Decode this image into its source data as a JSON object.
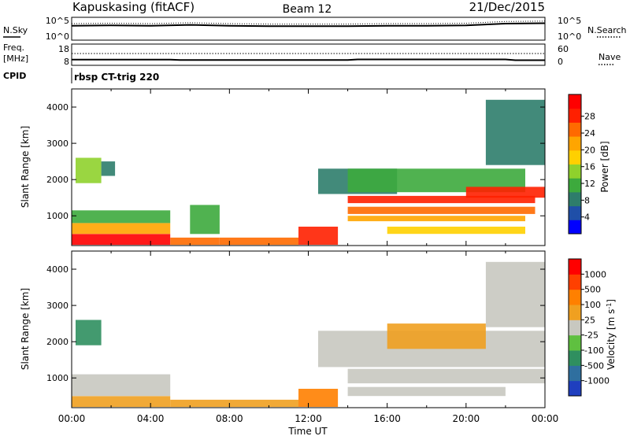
{
  "header": {
    "station": "Kapuskasing (fitACF)",
    "beam": "Beam 12",
    "date": "21/Dec/2015"
  },
  "noise_panel": {
    "left_label": "N.Sky",
    "left_ticks": [
      "10^5",
      "10^0"
    ],
    "right_ticks": [
      "10^5",
      "10^0"
    ],
    "right_label": "N.Search"
  },
  "freq_panel": {
    "left_label_top": "Freq.",
    "left_label_unit": "[MHz]",
    "left_ticks": [
      "18",
      "8"
    ],
    "right_ticks": [
      "60",
      "0"
    ],
    "right_label": "Nave"
  },
  "cpid": {
    "label": "CPID",
    "value": "rbsp CT-trig 220"
  },
  "axes": {
    "ylabel": "Slant Range [km]",
    "xlabel": "Time UT",
    "xticks": [
      "00:00",
      "04:00",
      "08:00",
      "12:00",
      "16:00",
      "20:00",
      "00:00"
    ],
    "yticks": [
      "1000",
      "2000",
      "3000",
      "4000"
    ]
  },
  "colorbars": {
    "power": {
      "label": "Power [dB]",
      "ticks": [
        "4",
        "8",
        "12",
        "16",
        "20",
        "24",
        "28"
      ],
      "colors": [
        "#0000ff",
        "#1f4fa8",
        "#2e7d6b",
        "#3daa3d",
        "#8fd12c",
        "#ffd000",
        "#ffa500",
        "#ff6a00",
        "#ff2000",
        "#ff0000"
      ]
    },
    "velocity": {
      "label": "Velocity [m s",
      "label_exp": "-1",
      "label_close": "]",
      "ticks": [
        "1000",
        "500",
        "100",
        "25",
        "-25",
        "-100",
        "-500",
        "-1000"
      ],
      "colors": [
        "#1f3fbf",
        "#2f6f9f",
        "#2f8f5f",
        "#5fc040",
        "#c8c8c0",
        "#f0a020",
        "#ff8000",
        "#ff4000",
        "#ff0000"
      ]
    }
  },
  "chart_data": [
    {
      "type": "line",
      "title": "Kapuskasing (fitACF) Beam 12 21/Dec/2015",
      "series": [
        {
          "name": "N.Sky",
          "x": [
            0,
            2,
            4,
            6,
            8,
            10,
            12,
            14,
            16,
            18,
            20,
            22,
            24
          ],
          "y": [
            3.2,
            3.3,
            3.2,
            3.4,
            3.2,
            3.1,
            3.1,
            3.1,
            3.2,
            3.2,
            3.3,
            3.7,
            3.8
          ]
        }
      ],
      "xlim": [
        0,
        24
      ],
      "ylim": [
        0,
        5
      ]
    },
    {
      "type": "line",
      "series": [
        {
          "name": "Freq.",
          "x": [
            0,
            5,
            5.5,
            14,
            14.5,
            22,
            22.5,
            24
          ],
          "y": [
            10.5,
            10.5,
            10.3,
            10.3,
            10.6,
            10.6,
            10.2,
            10.2
          ]
        }
      ],
      "xlim": [
        0,
        24
      ],
      "ylim": [
        8,
        18
      ]
    },
    {
      "type": "heatmap",
      "xlabel": "Time UT",
      "ylabel": "Slant Range [km]",
      "colorbar": "Power [dB]",
      "xlim": [
        0,
        24
      ],
      "ylim": [
        180,
        4500
      ],
      "regions": [
        {
          "t0": 0.0,
          "t1": 5.0,
          "r0": 200,
          "r1": 500,
          "value": 28
        },
        {
          "t0": 0.0,
          "t1": 5.0,
          "r0": 500,
          "r1": 800,
          "value": 20
        },
        {
          "t0": 0.0,
          "t1": 5.0,
          "r0": 800,
          "r1": 1150,
          "value": 12
        },
        {
          "t0": 0.2,
          "t1": 1.5,
          "r0": 1900,
          "r1": 2600,
          "value": 14
        },
        {
          "t0": 1.5,
          "t1": 2.2,
          "r0": 2100,
          "r1": 2500,
          "value": 10
        },
        {
          "t0": 5.0,
          "t1": 7.5,
          "r0": 200,
          "r1": 400,
          "value": 22
        },
        {
          "t0": 6.0,
          "t1": 7.5,
          "r0": 500,
          "r1": 1300,
          "value": 12
        },
        {
          "t0": 7.5,
          "t1": 11.5,
          "r0": 200,
          "r1": 400,
          "value": 22
        },
        {
          "t0": 11.5,
          "t1": 13.5,
          "r0": 200,
          "r1": 700,
          "value": 26
        },
        {
          "t0": 12.5,
          "t1": 16.5,
          "r0": 1600,
          "r1": 2300,
          "value": 8
        },
        {
          "t0": 14.0,
          "t1": 23.5,
          "r0": 1350,
          "r1": 1550,
          "value": 25
        },
        {
          "t0": 14.0,
          "t1": 23.5,
          "r0": 1050,
          "r1": 1250,
          "value": 22
        },
        {
          "t0": 14.0,
          "t1": 23.0,
          "r0": 850,
          "r1": 1000,
          "value": 20
        },
        {
          "t0": 16.0,
          "t1": 23.0,
          "r0": 500,
          "r1": 700,
          "value": 16
        },
        {
          "t0": 14.0,
          "t1": 23.0,
          "r0": 1650,
          "r1": 2300,
          "value": 12
        },
        {
          "t0": 20.0,
          "t1": 24.0,
          "r0": 1500,
          "r1": 1800,
          "value": 26
        },
        {
          "t0": 21.0,
          "t1": 24.0,
          "r0": 2400,
          "r1": 4200,
          "value": 8
        }
      ]
    },
    {
      "type": "heatmap",
      "xlabel": "Time UT",
      "ylabel": "Slant Range [km]",
      "colorbar": "Velocity [m s-1]",
      "xlim": [
        0,
        24
      ],
      "ylim": [
        180,
        4500
      ],
      "regions": [
        {
          "t0": 0.0,
          "t1": 5.0,
          "r0": 200,
          "r1": 500,
          "value": -100
        },
        {
          "t0": 0.0,
          "t1": 5.0,
          "r0": 500,
          "r1": 1100,
          "value": 0
        },
        {
          "t0": 0.2,
          "t1": 1.5,
          "r0": 1900,
          "r1": 2600,
          "value": 100
        },
        {
          "t0": 5.0,
          "t1": 11.5,
          "r0": 200,
          "r1": 400,
          "value": -100
        },
        {
          "t0": 11.5,
          "t1": 13.5,
          "r0": 200,
          "r1": 700,
          "value": -150
        },
        {
          "t0": 12.5,
          "t1": 24.0,
          "r0": 1300,
          "r1": 2300,
          "value": 0
        },
        {
          "t0": 14.0,
          "t1": 24.0,
          "r0": 850,
          "r1": 1250,
          "value": 0
        },
        {
          "t0": 14.0,
          "t1": 22.0,
          "r0": 500,
          "r1": 750,
          "value": 0
        },
        {
          "t0": 16.0,
          "t1": 21.0,
          "r0": 1800,
          "r1": 2500,
          "value": -100
        },
        {
          "t0": 21.0,
          "t1": 24.0,
          "r0": 2400,
          "r1": 4200,
          "value": 0
        }
      ]
    }
  ]
}
